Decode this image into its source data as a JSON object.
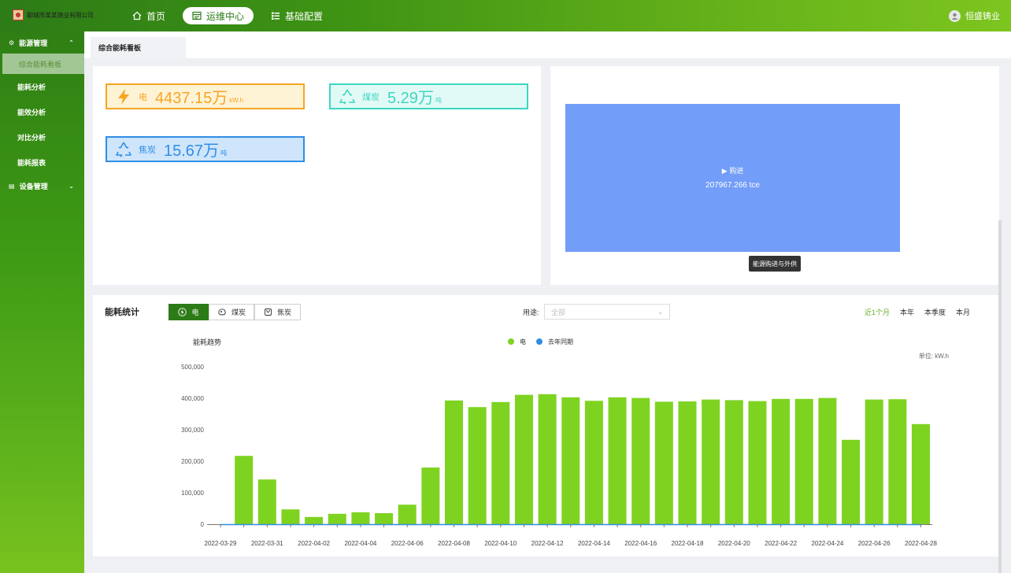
{
  "header": {
    "company": "聊城市某某铸业有限公司",
    "nav": [
      {
        "label": "首页",
        "icon": "home-icon",
        "active": false
      },
      {
        "label": "运维中心",
        "icon": "dashboard-icon",
        "active": true
      },
      {
        "label": "基础配置",
        "icon": "list-icon",
        "active": false
      }
    ],
    "user": "恒盛铸业"
  },
  "sidebar": {
    "groups": [
      {
        "label": "能源管理",
        "expanded": true
      },
      {
        "label": "设备管理",
        "expanded": false
      }
    ],
    "items": [
      "综合能耗看板",
      "能耗分析",
      "能效分析",
      "对比分析",
      "能耗报表"
    ]
  },
  "tab": {
    "label": "综合能耗看板"
  },
  "cards": [
    {
      "name": "电",
      "value": "4437.15万",
      "unit": "kW.h",
      "color": "#f5a623",
      "bg": "#fff3d6",
      "icon": "lightning-icon"
    },
    {
      "name": "煤炭",
      "value": "5.29万",
      "unit": "吨",
      "color": "#3ed6c1",
      "bg": "#e2faf6",
      "icon": "recycle-icon"
    },
    {
      "name": "焦炭",
      "value": "15.67万",
      "unit": "吨",
      "color": "#2f8ee6",
      "bg": "#cfe5fb",
      "icon": "recycle-icon"
    }
  ],
  "sankey": {
    "node_label": "购进",
    "node_value": "207967.266 tce",
    "tooltip": "能源购进与外供",
    "color": "#729df8"
  },
  "stats": {
    "title": "能耗统计",
    "energy_tabs": [
      {
        "label": "电",
        "active": true,
        "icon": "lightning-icon"
      },
      {
        "label": "煤炭",
        "active": false,
        "icon": "coal-icon"
      },
      {
        "label": "焦炭",
        "active": false,
        "icon": "coke-icon"
      }
    ],
    "usage_label": "用途:",
    "usage_value": "全部",
    "periods": [
      {
        "label": "近1个月",
        "active": true
      },
      {
        "label": "本年",
        "active": false
      },
      {
        "label": "本季度",
        "active": false
      },
      {
        "label": "本月",
        "active": false
      }
    ]
  },
  "chart_data": {
    "type": "bar",
    "title": "能耗趋势",
    "unit_label": "单位: kW.h",
    "legend": [
      {
        "name": "电",
        "color": "#7ed321"
      },
      {
        "name": "去年同期",
        "color": "#2f8ee6"
      }
    ],
    "ylim": [
      0,
      500000
    ],
    "yticks": [
      "0",
      "100,000",
      "200,000",
      "300,000",
      "400,000",
      "500,000"
    ],
    "categories": [
      "2022-03-29",
      "2022-03-30",
      "2022-03-31",
      "2022-04-01",
      "2022-04-02",
      "2022-04-03",
      "2022-04-04",
      "2022-04-05",
      "2022-04-06",
      "2022-04-07",
      "2022-04-08",
      "2022-04-09",
      "2022-04-10",
      "2022-04-11",
      "2022-04-12",
      "2022-04-13",
      "2022-04-14",
      "2022-04-15",
      "2022-04-16",
      "2022-04-17",
      "2022-04-18",
      "2022-04-19",
      "2022-04-20",
      "2022-04-21",
      "2022-04-22",
      "2022-04-23",
      "2022-04-24",
      "2022-04-25",
      "2022-04-26",
      "2022-04-27",
      "2022-04-28"
    ],
    "xtick_labels": [
      "2022-03-29",
      "2022-03-31",
      "2022-04-02",
      "2022-04-04",
      "2022-04-06",
      "2022-04-08",
      "2022-04-10",
      "2022-04-12",
      "2022-04-14",
      "2022-04-16",
      "2022-04-18",
      "2022-04-20",
      "2022-04-22",
      "2022-04-24",
      "2022-04-26",
      "2022-04-28"
    ],
    "series": [
      {
        "name": "电",
        "color": "#7ed321",
        "values": [
          0,
          217000,
          142000,
          47000,
          23000,
          33000,
          38000,
          35000,
          62000,
          180000,
          393000,
          372000,
          388000,
          411000,
          413000,
          403000,
          392000,
          403000,
          401000,
          389000,
          390000,
          396000,
          394000,
          391000,
          398000,
          398000,
          401000,
          268000,
          396000,
          397000,
          318000
        ]
      },
      {
        "name": "去年同期",
        "color": "#2f8ee6",
        "values": [
          0,
          0,
          0,
          0,
          0,
          0,
          0,
          0,
          0,
          0,
          0,
          0,
          0,
          0,
          0,
          0,
          0,
          0,
          0,
          0,
          0,
          0,
          0,
          0,
          0,
          0,
          0,
          0,
          0,
          0,
          0
        ]
      }
    ]
  }
}
